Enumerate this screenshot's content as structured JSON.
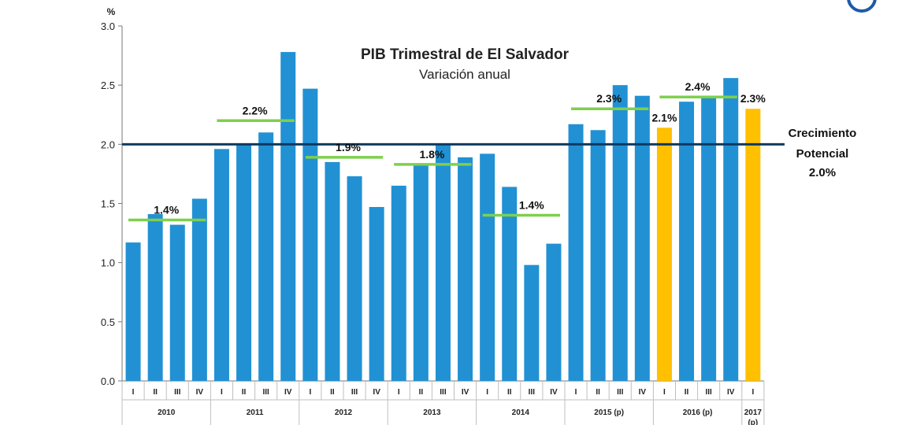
{
  "chart_data": {
    "type": "bar",
    "title": "PIB Trimestral de El Salvador",
    "subtitle": "Variación anual",
    "ylabel": "%",
    "ylim": [
      0,
      3.0
    ],
    "yticks": [
      "0.0",
      "0.5",
      "1.0",
      "1.5",
      "2.0",
      "2.5",
      "3.0"
    ],
    "years": [
      {
        "label": "2010",
        "quarters": [
          "I",
          "II",
          "III",
          "IV"
        ],
        "values": [
          1.17,
          1.41,
          1.32,
          1.54
        ],
        "projection": [
          false,
          false,
          false,
          false
        ],
        "average": 1.36,
        "average_label": "1.4%"
      },
      {
        "label": "2011",
        "quarters": [
          "I",
          "II",
          "III",
          "IV"
        ],
        "values": [
          1.96,
          2.0,
          2.1,
          2.78
        ],
        "projection": [
          false,
          false,
          false,
          false
        ],
        "average": 2.2,
        "average_label": "2.2%"
      },
      {
        "label": "2012",
        "quarters": [
          "I",
          "II",
          "III",
          "IV"
        ],
        "values": [
          2.47,
          1.85,
          1.73,
          1.47
        ],
        "projection": [
          false,
          false,
          false,
          false
        ],
        "average": 1.89,
        "average_label": "1.9%"
      },
      {
        "label": "2013",
        "quarters": [
          "I",
          "II",
          "III",
          "IV"
        ],
        "values": [
          1.65,
          1.82,
          2.0,
          1.89
        ],
        "projection": [
          false,
          false,
          false,
          false
        ],
        "average": 1.83,
        "average_label": "1.8%"
      },
      {
        "label": "2014",
        "quarters": [
          "I",
          "II",
          "III",
          "IV"
        ],
        "values": [
          1.92,
          1.64,
          0.98,
          1.16
        ],
        "projection": [
          false,
          false,
          false,
          false
        ],
        "average": 1.4,
        "average_label": "1.4%"
      },
      {
        "label": "2015 (p)",
        "quarters": [
          "I",
          "II",
          "III",
          "IV"
        ],
        "values": [
          2.17,
          2.12,
          2.5,
          2.41
        ],
        "projection": [
          false,
          false,
          false,
          false
        ],
        "average": 2.3,
        "average_label": "2.3%"
      },
      {
        "label": "2016 (p)",
        "quarters": [
          "I",
          "II",
          "III",
          "IV"
        ],
        "values": [
          2.14,
          2.36,
          2.4,
          2.56
        ],
        "projection": [
          true,
          false,
          false,
          false
        ],
        "average": 2.4,
        "average_label": "2.4%",
        "value_label_q1": "2.1%"
      },
      {
        "label": "2017 (p)",
        "quarters": [
          "I"
        ],
        "values": [
          2.3
        ],
        "projection": [
          true
        ],
        "value_label_q1": "2.3%"
      }
    ],
    "reference_line": {
      "value": 2.0,
      "label_lines": [
        "Crecimiento",
        "Potencial",
        "2.0%"
      ]
    },
    "colors": {
      "bar": "#2191d4",
      "bar_projection": "#ffc000",
      "average_line": "#7ed04b",
      "reference_line": "#0f3a5f",
      "axis": "#777777",
      "grid": "#bfbfbf"
    },
    "legend": "none",
    "grid": false
  }
}
